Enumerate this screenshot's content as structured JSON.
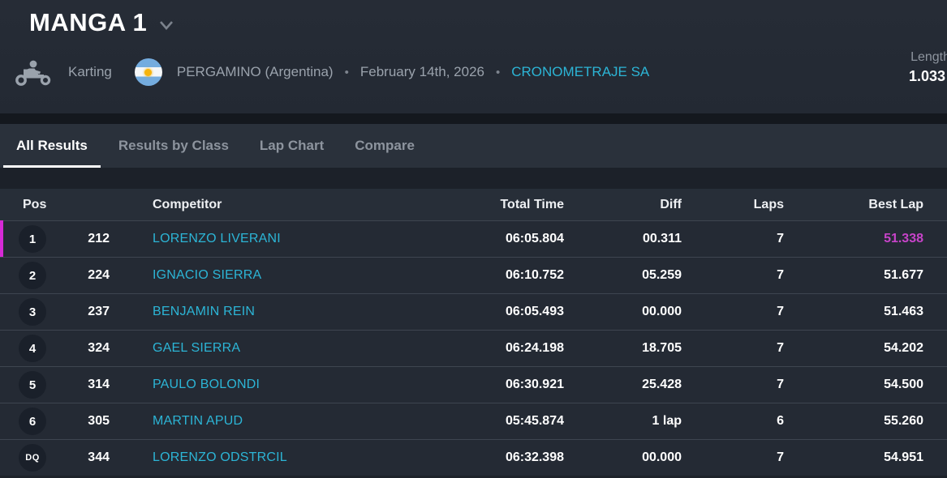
{
  "header": {
    "title": "MANGA 1",
    "sport": "Karting",
    "location": "PERGAMINO (Argentina)",
    "date": "February 14th, 2026",
    "timekeeper": "CRONOMETRAJE SA",
    "separator": "•",
    "length_label": "Length",
    "length_value": "1.033"
  },
  "tabs": [
    {
      "label": "All Results",
      "active": true
    },
    {
      "label": "Results by Class",
      "active": false
    },
    {
      "label": "Lap Chart",
      "active": false
    },
    {
      "label": "Compare",
      "active": false
    }
  ],
  "table": {
    "columns": {
      "pos": "Pos",
      "competitor": "Competitor",
      "total_time": "Total Time",
      "diff": "Diff",
      "laps": "Laps",
      "best_lap": "Best Lap"
    },
    "rows": [
      {
        "pos": "1",
        "number": "212",
        "name": "LORENZO LIVERANI",
        "total_time": "06:05.804",
        "diff": "00.311",
        "laps": "7",
        "best_lap": "51.338",
        "highlight": true
      },
      {
        "pos": "2",
        "number": "224",
        "name": "IGNACIO SIERRA",
        "total_time": "06:10.752",
        "diff": "05.259",
        "laps": "7",
        "best_lap": "51.677",
        "highlight": false
      },
      {
        "pos": "3",
        "number": "237",
        "name": "BENJAMIN REIN",
        "total_time": "06:05.493",
        "diff": "00.000",
        "laps": "7",
        "best_lap": "51.463",
        "highlight": false
      },
      {
        "pos": "4",
        "number": "324",
        "name": "GAEL SIERRA",
        "total_time": "06:24.198",
        "diff": "18.705",
        "laps": "7",
        "best_lap": "54.202",
        "highlight": false
      },
      {
        "pos": "5",
        "number": "314",
        "name": "PAULO BOLONDI",
        "total_time": "06:30.921",
        "diff": "25.428",
        "laps": "7",
        "best_lap": "54.500",
        "highlight": false
      },
      {
        "pos": "6",
        "number": "305",
        "name": "MARTIN APUD",
        "total_time": "05:45.874",
        "diff": "1 lap",
        "laps": "6",
        "best_lap": "55.260",
        "highlight": false
      },
      {
        "pos": "DQ",
        "number": "344",
        "name": "LORENZO ODSTRCIL",
        "total_time": "06:32.398",
        "diff": "00.000",
        "laps": "7",
        "best_lap": "54.951",
        "highlight": false
      }
    ]
  },
  "colors": {
    "accent_cyan": "#2cb5d6",
    "accent_magenta": "#d62ad6",
    "accent_magenta_text": "#c743c9"
  }
}
